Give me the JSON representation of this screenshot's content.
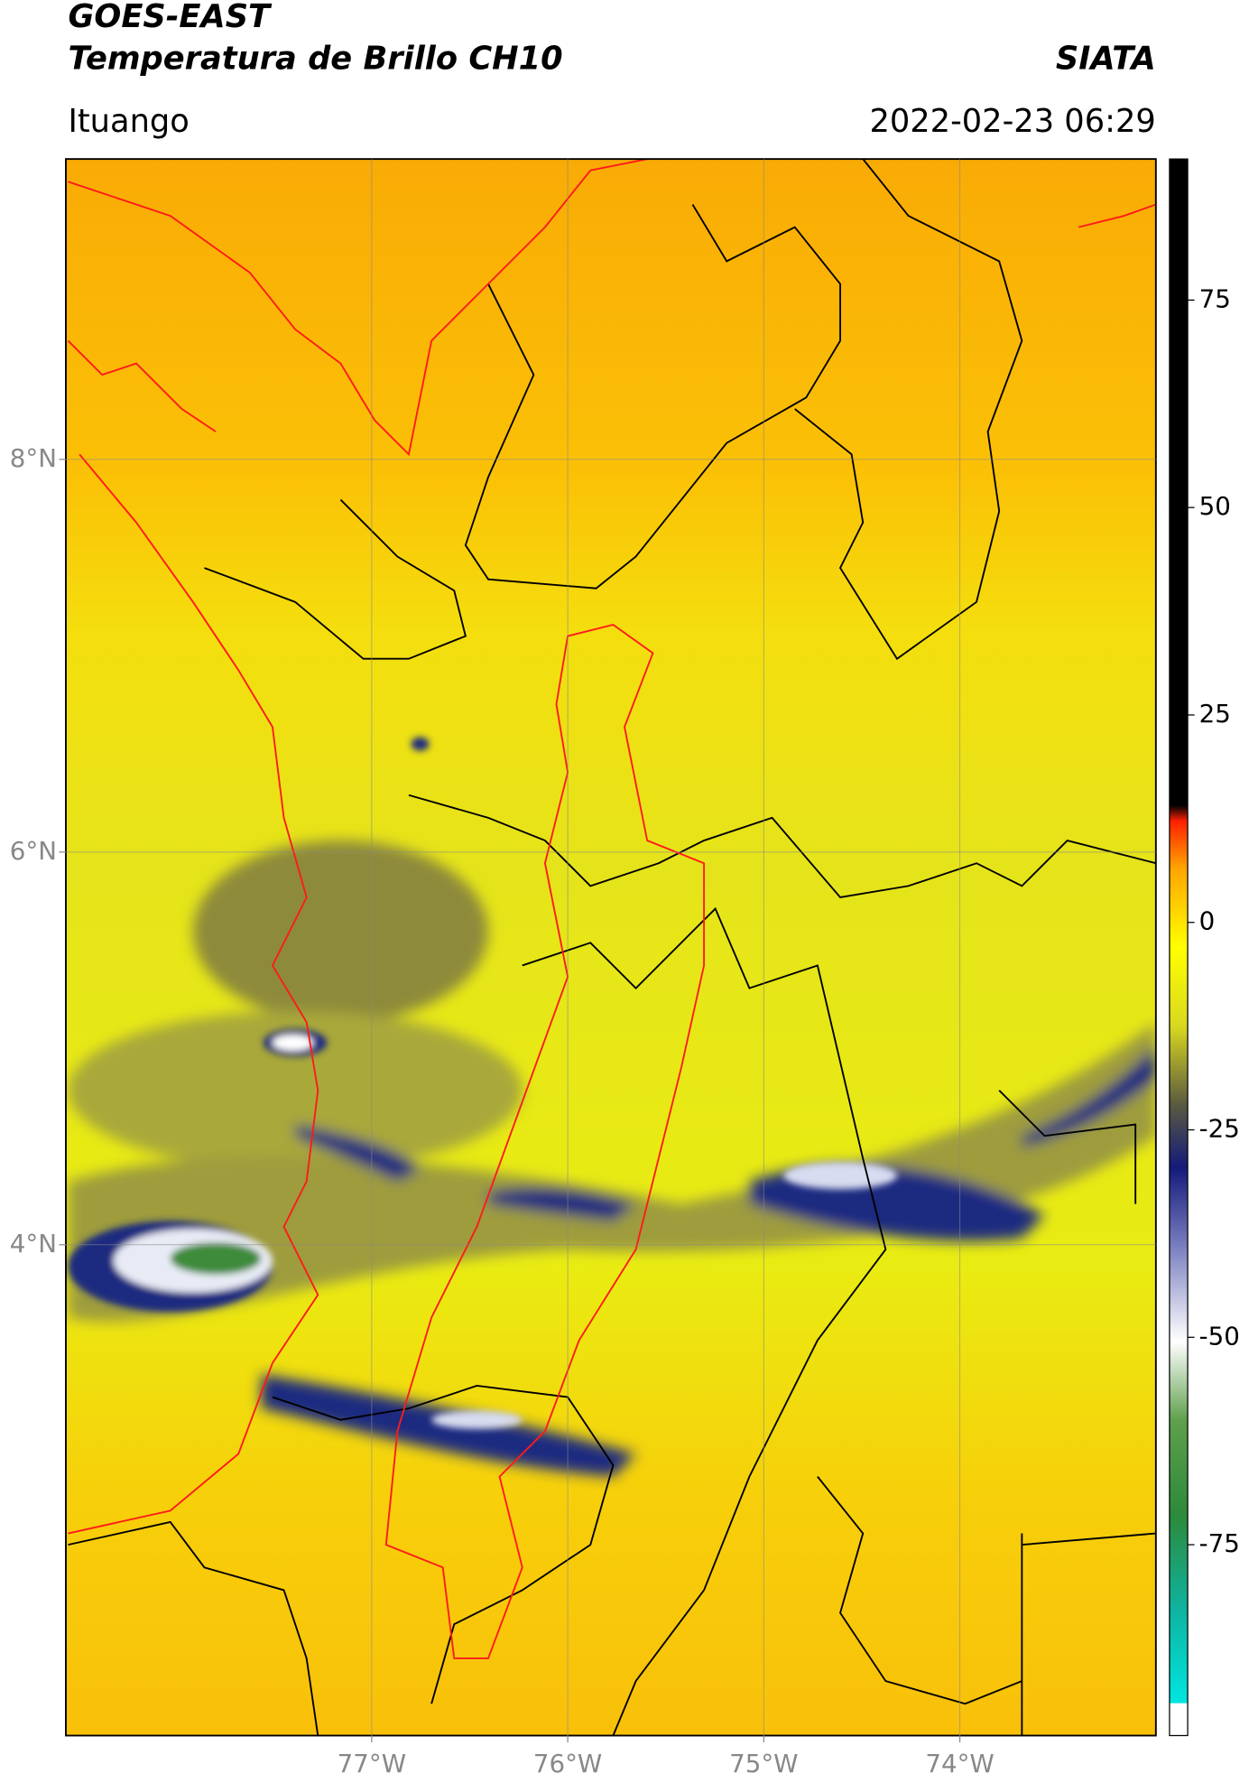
{
  "header": {
    "title_line1": "GOES-EAST",
    "title_line2": "Temperatura de Brillo CH10",
    "source": "SIATA",
    "location": "Ituango",
    "timestamp": "2022-02-23 06:29"
  },
  "map": {
    "xlim": [
      -78.56,
      -73.0
    ],
    "ylim": [
      1.5,
      9.53
    ],
    "xticks": [
      {
        "value": -77,
        "label": "77°W"
      },
      {
        "value": -76,
        "label": "76°W"
      },
      {
        "value": -75,
        "label": "75°W"
      },
      {
        "value": -74,
        "label": "74°W"
      }
    ],
    "yticks": [
      {
        "value": 8,
        "label": "8°N"
      },
      {
        "value": 6,
        "label": "6°N"
      },
      {
        "value": 4,
        "label": "4°N"
      }
    ]
  },
  "colorbar": {
    "lim": [
      -98,
      92
    ],
    "ticks": [
      75,
      50,
      25,
      0,
      -25,
      -50,
      -75
    ]
  }
}
